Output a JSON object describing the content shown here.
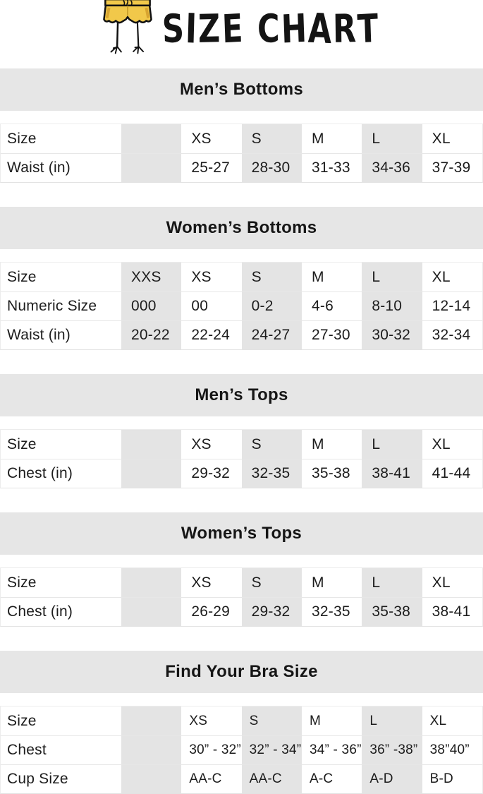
{
  "logo": {
    "title": "SIZE CHART",
    "icon": "shorts-with-bird-legs"
  },
  "colors": {
    "section_bar_bg": "#e6e6e6",
    "column_shade_bg": "#e4e4e4",
    "table_border": "#e7e7e7",
    "text": "#1c1c1c",
    "shorts_yellow": "#f1c84a",
    "shorts_shade": "#d8a430"
  },
  "sections": [
    {
      "id": "mens-bottoms",
      "title": "Men’s Bottoms",
      "rows": [
        {
          "label": "Size",
          "values": [
            "",
            "XS",
            "S",
            "M",
            "L",
            "XL"
          ]
        },
        {
          "label": "Waist (in)",
          "values": [
            "",
            "25-27",
            "28-30",
            "31-33",
            "34-36",
            "37-39"
          ]
        }
      ]
    },
    {
      "id": "womens-bottoms",
      "title": "Women’s Bottoms",
      "rows": [
        {
          "label": "Size",
          "values": [
            "XXS",
            "XS",
            "S",
            "M",
            "L",
            "XL"
          ]
        },
        {
          "label": "Numeric Size",
          "values": [
            "000",
            "00",
            "0-2",
            "4-6",
            "8-10",
            "12-14"
          ]
        },
        {
          "label": "Waist (in)",
          "values": [
            "20-22",
            "22-24",
            "24-27",
            "27-30",
            "30-32",
            "32-34"
          ]
        }
      ]
    },
    {
      "id": "mens-tops",
      "title": "Men’s Tops",
      "rows": [
        {
          "label": "Size",
          "values": [
            "",
            "XS",
            "S",
            "M",
            "L",
            "XL"
          ]
        },
        {
          "label": "Chest (in)",
          "values": [
            "",
            "29-32",
            "32-35",
            "35-38",
            "38-41",
            "41-44"
          ]
        }
      ]
    },
    {
      "id": "womens-tops",
      "title": "Women’s Tops",
      "rows": [
        {
          "label": "Size",
          "values": [
            "",
            "XS",
            "S",
            "M",
            "L",
            "XL"
          ]
        },
        {
          "label": "Chest (in)",
          "values": [
            "",
            "26-29",
            "29-32",
            "32-35",
            "35-38",
            "38-41"
          ]
        }
      ]
    },
    {
      "id": "bra-size",
      "title": "Find Your Bra Size",
      "compact": true,
      "rows": [
        {
          "label": "Size",
          "values": [
            "",
            "XS",
            "S",
            "M",
            "L",
            "XL"
          ]
        },
        {
          "label": "Chest",
          "values": [
            "",
            "30” - 32”",
            "32” - 34”",
            "34” - 36”",
            "36” -38”",
            "38”40”"
          ]
        },
        {
          "label": "Cup Size",
          "values": [
            "",
            "AA-C",
            "AA-C",
            "A-C",
            "A-D",
            "B-D"
          ]
        }
      ]
    }
  ]
}
